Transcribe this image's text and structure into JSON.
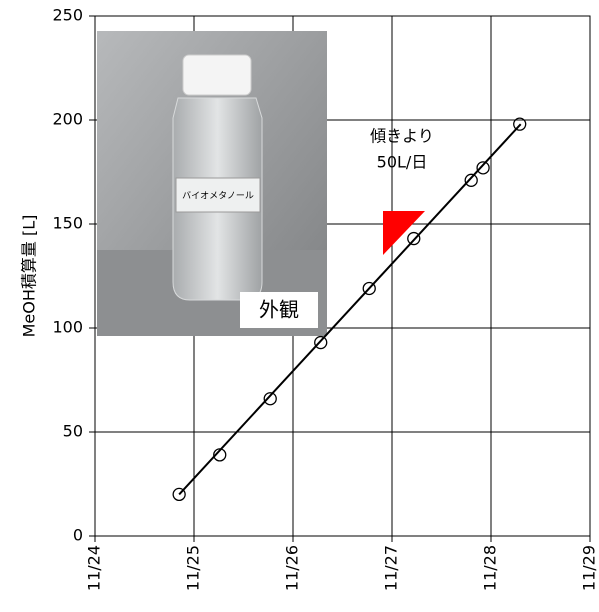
{
  "chart_data": {
    "type": "scatter",
    "y_label": "MeOH積算量 [L]",
    "x": [
      24.85,
      25.26,
      25.77,
      26.28,
      26.77,
      27.22,
      27.8,
      27.92,
      28.29
    ],
    "values": [
      20,
      39,
      66,
      93,
      119,
      143,
      171,
      177,
      198
    ],
    "trendline": {
      "x": [
        24.85,
        28.3
      ],
      "values": [
        20,
        198
      ]
    },
    "color": "#000000",
    "xlim": [
      24,
      29
    ],
    "xticks": [
      {
        "value": 24,
        "label": "11/24"
      },
      {
        "value": 25,
        "label": "11/25"
      },
      {
        "value": 26,
        "label": "11/26"
      },
      {
        "value": 27,
        "label": "11/27"
      },
      {
        "value": 28,
        "label": "11/28"
      },
      {
        "value": 29,
        "label": "11/29"
      }
    ],
    "ylim": [
      0,
      250
    ],
    "yticks": [
      0,
      50,
      100,
      150,
      200,
      250
    ],
    "grid": true,
    "annotations": {
      "slope_line1": "傾きより",
      "slope_line2": "50L/日",
      "photo_caption": "外観",
      "bottle_label": "バイオメタノール"
    }
  }
}
